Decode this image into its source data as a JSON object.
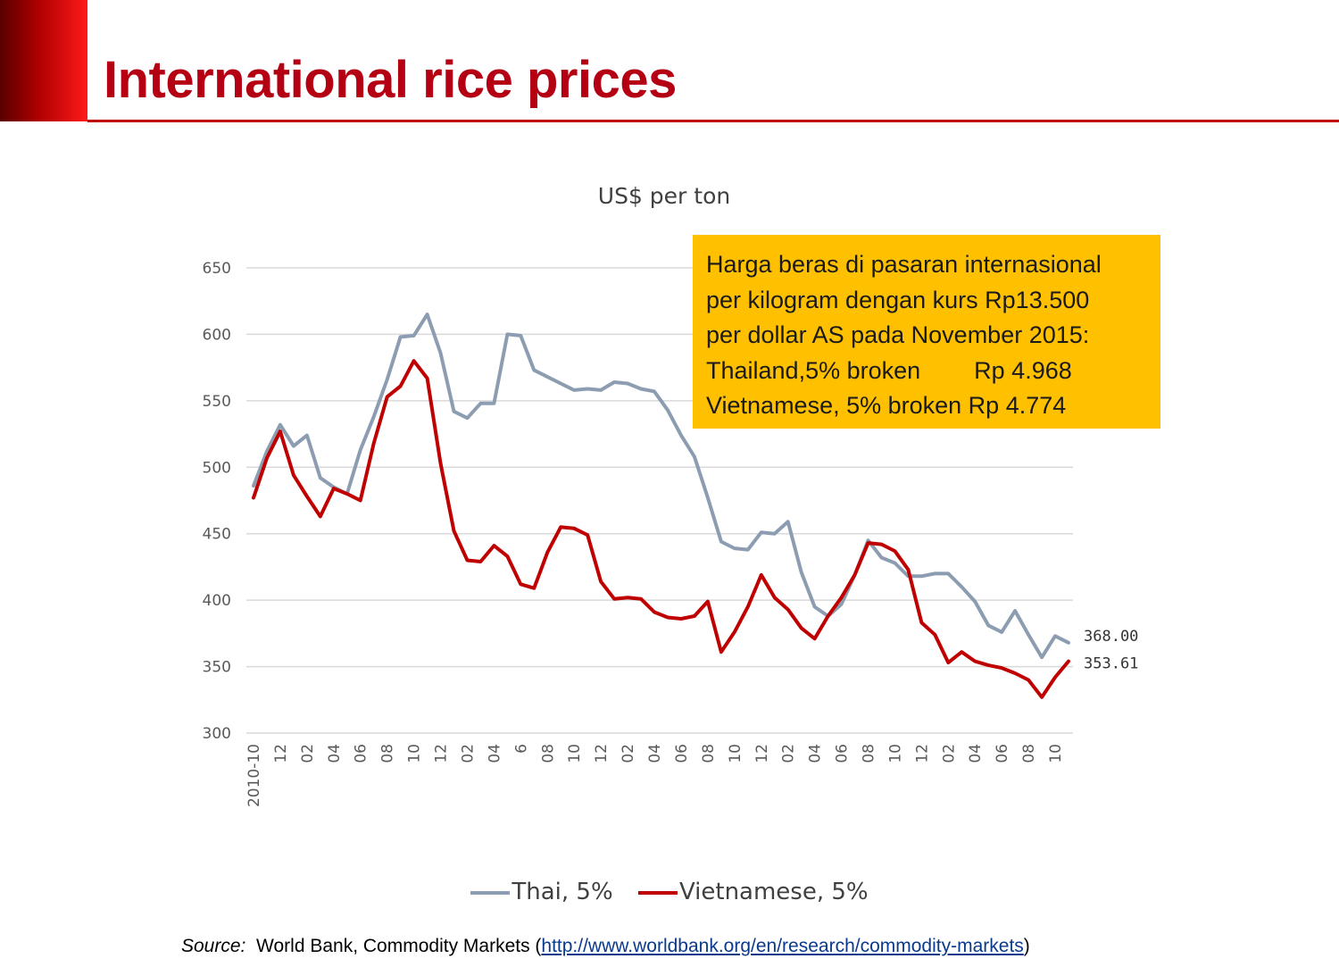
{
  "slide": {
    "title": "International rice prices"
  },
  "note": {
    "lines": [
      "Harga beras di pasaran internasional",
      "per kilogram dengan kurs Rp13.500",
      "per dollar AS pada November 2015:",
      "Thailand,5% broken        Rp 4.968",
      "Vietnamese, 5% broken Rp 4.774"
    ],
    "background": "#ffc000"
  },
  "source": {
    "label": "Source:",
    "text": "World Bank, Commodity Markets (",
    "link": "http://www.worldbank.org/en/research/commodity-markets",
    "close": ")"
  },
  "colors": {
    "thai": "#8d9db1",
    "vietnamese": "#c00000",
    "grid": "#d9d9d9",
    "accent": "#b40012"
  },
  "chart_data": {
    "type": "line",
    "title": "US$ per ton",
    "ylim": [
      300,
      650
    ],
    "yticks": [
      300,
      350,
      400,
      450,
      500,
      550,
      600,
      650
    ],
    "grid": "horizontal",
    "legend": "bottom",
    "x": [
      "2010-10",
      "11",
      "12",
      "01",
      "02",
      "03",
      "04",
      "05",
      "06",
      "07",
      "08",
      "09",
      "10",
      "11",
      "12",
      "01",
      "02",
      "03",
      "04",
      "05",
      "6",
      "07",
      "08",
      "09",
      "10",
      "11",
      "12",
      "01",
      "02",
      "03",
      "04",
      "05",
      "06",
      "07",
      "08",
      "09",
      "10",
      "11",
      "12",
      "01",
      "02",
      "03",
      "04",
      "05",
      "06",
      "07",
      "08",
      "09",
      "10",
      "11",
      "12",
      "01",
      "02",
      "03",
      "04",
      "05",
      "06",
      "07",
      "08",
      "09",
      "10",
      "11"
    ],
    "xtick_labels": [
      "2010-10",
      "",
      "12",
      "",
      "02",
      "",
      "04",
      "",
      "06",
      "",
      "08",
      "",
      "10",
      "",
      "12",
      "",
      "02",
      "",
      "04",
      "",
      "6",
      "",
      "08",
      "",
      "10",
      "",
      "12",
      "",
      "02",
      "",
      "04",
      "",
      "06",
      "",
      "08",
      "",
      "10",
      "",
      "12",
      "",
      "02",
      "",
      "04",
      "",
      "06",
      "",
      "08",
      "",
      "10",
      "",
      "12",
      "",
      "02",
      "",
      "04",
      "",
      "06",
      "",
      "08",
      "",
      "10",
      ""
    ],
    "series": [
      {
        "name": "Thai, 5%",
        "color": "#8d9db1",
        "end_label": "368.00",
        "values": [
          486,
          512,
          532,
          516,
          524,
          492,
          485,
          480,
          513,
          538,
          566,
          598,
          599,
          615,
          586,
          542,
          537,
          548,
          548,
          600,
          599,
          573,
          568,
          563,
          558,
          559,
          558,
          564,
          563,
          559,
          557,
          543,
          524,
          508,
          477,
          444,
          439,
          438,
          451,
          450,
          459,
          421,
          395,
          388,
          397,
          419,
          445,
          432,
          428,
          418,
          418,
          420,
          420,
          410,
          399,
          381,
          376,
          392,
          374,
          357,
          373,
          368
        ]
      },
      {
        "name": "Vietnamese, 5%",
        "color": "#c00000",
        "end_label": "353.61",
        "values": [
          477,
          507,
          527,
          494,
          478,
          463,
          484,
          480,
          475,
          518,
          553,
          561,
          580,
          567,
          503,
          452,
          430,
          429,
          441,
          433,
          412,
          409,
          436,
          455,
          454,
          449,
          414,
          401,
          402,
          401,
          391,
          387,
          386,
          388,
          399,
          361,
          376,
          395,
          419,
          402,
          393,
          379,
          371,
          388,
          402,
          419,
          443,
          442,
          437,
          423,
          383,
          374,
          353,
          361,
          354,
          351,
          349,
          345,
          340,
          327,
          342,
          354
        ]
      }
    ]
  }
}
